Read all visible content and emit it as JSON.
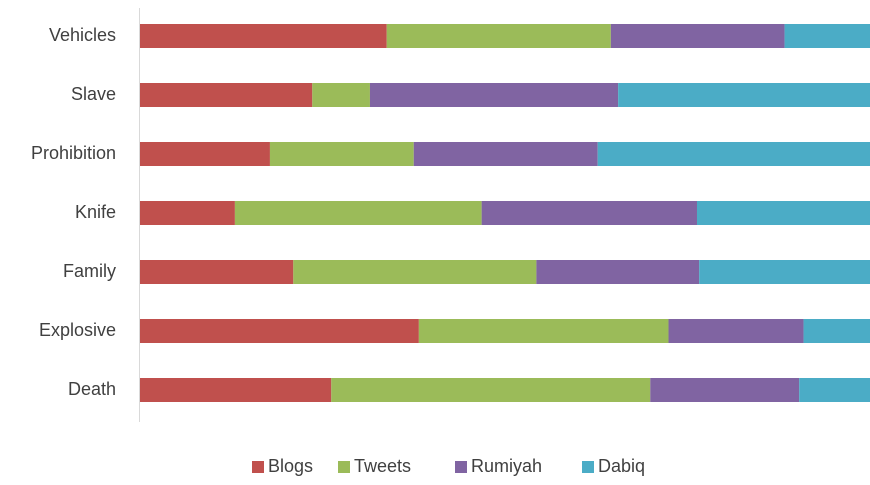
{
  "chart_data": {
    "type": "stacked-bar-horizontal",
    "categories": [
      "Vehicles",
      "Slave",
      "Prohibition",
      "Knife",
      "Family",
      "Explosive",
      "Death"
    ],
    "series": [
      {
        "name": "Blogs",
        "color": "#c0504d",
        "values": [
          33.8,
          23.6,
          17.8,
          13.0,
          21.0,
          38.2,
          26.2
        ]
      },
      {
        "name": "Tweets",
        "color": "#9bbb59",
        "values": [
          30.7,
          7.9,
          19.7,
          33.8,
          33.3,
          34.2,
          43.7
        ]
      },
      {
        "name": "Rumiyah",
        "color": "#8064a2",
        "values": [
          23.8,
          34.0,
          25.2,
          29.5,
          22.3,
          18.5,
          20.4
        ]
      },
      {
        "name": "Dabiq",
        "color": "#4bacc6",
        "values": [
          11.7,
          34.5,
          37.3,
          23.7,
          23.4,
          9.1,
          9.7
        ]
      }
    ],
    "xlim": [
      0,
      100
    ],
    "legend": "bottom"
  }
}
